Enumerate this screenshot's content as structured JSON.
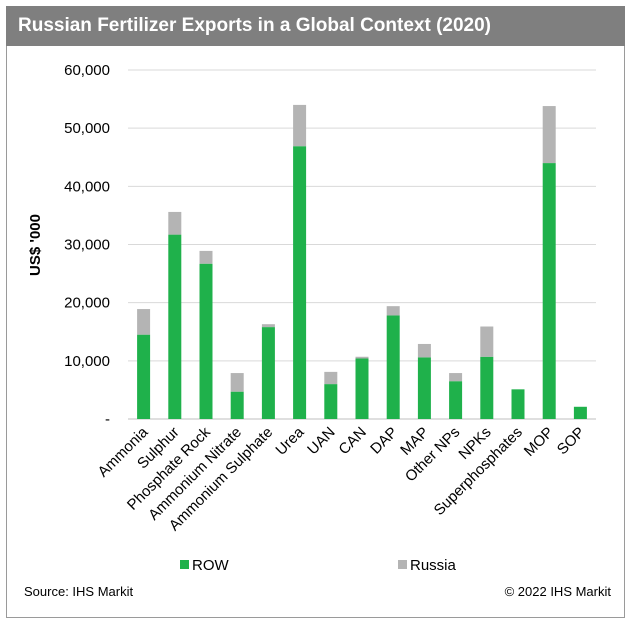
{
  "footer": {
    "source": "Source: IHS Markit",
    "copyright": "© 2022 IHS Markit"
  },
  "colors": {
    "row": "#1fb14b",
    "russia": "#b4b4b4",
    "title_bg": "#7f7f7f",
    "grid": "#d9d9d9"
  },
  "chart_data": {
    "type": "bar",
    "stacked": true,
    "title": "Russian Fertilizer Exports in a Global Context (2020)",
    "ylabel": "US$ '000",
    "ylim": [
      0,
      60000
    ],
    "yticks": [
      0,
      10000,
      20000,
      30000,
      40000,
      50000,
      60000
    ],
    "ytick_labels": [
      "-",
      "10,000",
      "20,000",
      "30,000",
      "40,000",
      "50,000",
      "60,000"
    ],
    "grid": true,
    "legend_position": "bottom",
    "categories": [
      "Ammonia",
      "Sulphur",
      "Phosphate Rock",
      "Ammonium Nitrate",
      "Ammonium Sulphate",
      "Urea",
      "UAN",
      "CAN",
      "DAP",
      "MAP",
      "Other NPs",
      "NPKs",
      "Superphosphates",
      "MOP",
      "SOP"
    ],
    "series": [
      {
        "name": "ROW",
        "values": [
          14500,
          31700,
          26700,
          4700,
          15800,
          46900,
          6000,
          10400,
          17800,
          10600,
          6500,
          10700,
          5100,
          44000,
          2100
        ]
      },
      {
        "name": "Russia",
        "values": [
          4400,
          3900,
          2200,
          3200,
          500,
          7100,
          2100,
          300,
          1600,
          2300,
          1400,
          5200,
          0,
          9800,
          0
        ]
      }
    ]
  }
}
